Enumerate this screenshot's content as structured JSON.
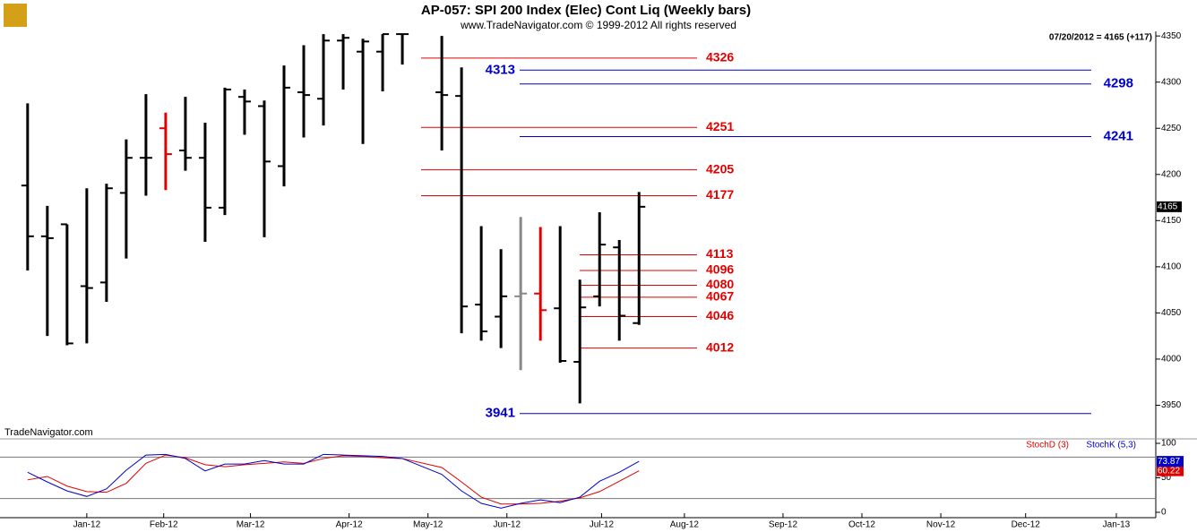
{
  "chart_data": [
    {
      "type": "ohlc",
      "title": "AP-057:  SPI 200 Index (Elec) Cont Liq  (Weekly bars)",
      "subtitle": "www.TradeNavigator.com © 1999-2012 All rights reserved",
      "watermark": "TradeNavigator.com",
      "header": "07/20/2012 = 4165 (+117)",
      "x": [
        0,
        1,
        2,
        3,
        4,
        5,
        6,
        7,
        8,
        9,
        10,
        11,
        12,
        13,
        14,
        15,
        16,
        17,
        18,
        19,
        21,
        22,
        23,
        24,
        25,
        26,
        27,
        28,
        29,
        30,
        31
      ],
      "open": [
        4188,
        4133,
        4146,
        4079,
        4083,
        4180,
        4218,
        4250,
        4226,
        4218,
        4164,
        4284,
        4274,
        4209,
        4289,
        4282,
        4345,
        4333,
        4333,
        4352,
        4289,
        4285,
        4059,
        4046,
        4068,
        4071,
        4055,
        3997,
        4068,
        4121,
        4039
      ],
      "high": [
        4277,
        4166,
        4146,
        4185,
        4190,
        4238,
        4287,
        4267,
        4284,
        4256,
        4294,
        4292,
        4280,
        4318,
        4340,
        4352,
        4352,
        4347,
        4352,
        4352,
        4350,
        4316,
        4144,
        4119,
        4154,
        4143,
        4144,
        4086,
        4159,
        4129,
        4181
      ],
      "low": [
        4096,
        4025,
        4015,
        4017,
        4062,
        4109,
        4177,
        4183,
        4204,
        4127,
        4156,
        4243,
        4132,
        4187,
        4240,
        4253,
        4292,
        4233,
        4290,
        4319,
        4226,
        4028,
        4020,
        4012,
        3988,
        4020,
        3996,
        3952,
        4057,
        4020,
        4037
      ],
      "close": [
        4133,
        4131,
        4017,
        4077,
        4185,
        4218,
        4218,
        4222,
        4218,
        4164,
        4292,
        4279,
        4214,
        4294,
        4286,
        4345,
        4348,
        4344,
        4352,
        4352,
        4286,
        4057,
        4030,
        4068,
        4071,
        4053,
        3998,
        4056,
        4124,
        4047,
        4165
      ],
      "colors": [
        "#000",
        "#000",
        "#000",
        "#000",
        "#000",
        "#000",
        "#000",
        "#e00000",
        "#000",
        "#000",
        "#000",
        "#000",
        "#000",
        "#000",
        "#000",
        "#000",
        "#000",
        "#000",
        "#000",
        "#000",
        "#000",
        "#000",
        "#000",
        "#000",
        "#888888",
        "#e00000",
        "#000",
        "#000",
        "#000",
        "#000",
        "#000"
      ],
      "levels": [
        {
          "value": 4326,
          "color": "#e00000"
        },
        {
          "value": 4251,
          "color": "#e00000"
        },
        {
          "value": 4205,
          "color": "#e00000"
        },
        {
          "value": 4177,
          "color": "#e00000"
        },
        {
          "value": 4113,
          "color": "#e00000"
        },
        {
          "value": 4096,
          "color": "#e00000"
        },
        {
          "value": 4080,
          "color": "#e00000"
        },
        {
          "value": 4067,
          "color": "#e00000"
        },
        {
          "value": 4046,
          "color": "#e00000"
        },
        {
          "value": 4012,
          "color": "#e00000"
        },
        {
          "value": 4313,
          "color": "#0000cc"
        },
        {
          "value": 4298,
          "color": "#0000cc"
        },
        {
          "value": 4241,
          "color": "#0000cc"
        },
        {
          "value": 3941,
          "color": "#0000cc"
        }
      ],
      "xlim": [
        -1.4,
        57.2
      ],
      "xticks": [
        {
          "value": 3,
          "label": "Jan-12"
        },
        {
          "value": 6.9,
          "label": "Feb-12"
        },
        {
          "value": 11.3,
          "label": "Mar-12"
        },
        {
          "value": 16.3,
          "label": "Apr-12"
        },
        {
          "value": 20.3,
          "label": "May-12"
        },
        {
          "value": 24.3,
          "label": "Jun-12"
        },
        {
          "value": 29.1,
          "label": "Jul-12"
        },
        {
          "value": 33.3,
          "label": "Aug-12"
        },
        {
          "value": 38.3,
          "label": "Sep-12"
        },
        {
          "value": 42.3,
          "label": "Oct-12"
        },
        {
          "value": 46.3,
          "label": "Nov-12"
        },
        {
          "value": 50.6,
          "label": "Dec-12"
        },
        {
          "value": 55.2,
          "label": "Jan-13"
        }
      ],
      "ylim": [
        3933,
        4355
      ],
      "yticks": [
        3950,
        4000,
        4050,
        4100,
        4150,
        4200,
        4250,
        4300,
        4350
      ]
    },
    {
      "type": "line",
      "x": [
        0,
        1,
        2,
        3,
        4,
        5,
        6,
        7,
        8,
        9,
        10,
        11,
        12,
        13,
        14,
        15,
        16,
        17,
        18,
        19,
        21,
        22,
        23,
        24,
        25,
        26,
        27,
        28,
        29,
        30,
        31
      ],
      "series": [
        {
          "name": "StochD (3)",
          "color": "#e00000",
          "values": [
            47,
            52,
            38,
            30,
            29,
            42,
            71,
            83,
            79,
            69,
            66,
            69,
            71,
            73,
            71,
            78,
            82,
            81,
            79,
            78,
            65,
            44,
            22,
            12,
            12,
            13,
            16,
            21,
            30,
            45,
            60.22
          ]
        },
        {
          "name": "StochK (5,3)",
          "color": "#0000cc",
          "values": [
            58,
            44,
            31,
            23,
            34,
            61,
            83,
            84,
            78,
            60,
            70,
            70,
            75,
            70,
            70,
            84,
            83,
            82,
            81,
            78,
            55,
            31,
            13,
            6,
            13,
            18,
            14,
            22,
            45,
            58,
            73.87
          ]
        }
      ],
      "levels": [
        80,
        20
      ],
      "ylim": [
        0,
        100
      ],
      "yticks": [
        0,
        50,
        100
      ]
    }
  ]
}
